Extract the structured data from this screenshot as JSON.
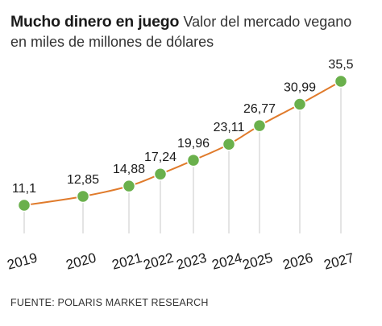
{
  "header": {
    "title": "Mucho dinero en juego",
    "subtitle_line1": "Valor del mercado vegano",
    "subtitle_line2": "en miles de millones de dólares"
  },
  "source": "FUENTE: POLARIS MARKET RESEARCH",
  "colors": {
    "line": "#e07b2c",
    "marker": "#6ab04c",
    "marker_stroke": "#ffffff",
    "drop_line": "#c8c8c8"
  },
  "chart_data": {
    "type": "line",
    "title": "Mucho dinero en juego",
    "subtitle": "Valor del mercado vegano en miles de millones de dólares",
    "x": [
      "2019",
      "2020",
      "2021",
      "2022",
      "2023",
      "2024",
      "2025",
      "2026",
      "2027"
    ],
    "series": [
      {
        "values": [
          11.1,
          12.85,
          14.88,
          17.24,
          19.96,
          23.11,
          26.77,
          30.99,
          35.5
        ],
        "labels": [
          "11,1",
          "12,85",
          "14,88",
          "17,24",
          "19,96",
          "23,11",
          "26,77",
          "30,99",
          "35,5"
        ]
      }
    ],
    "grid": false,
    "legend": "none"
  }
}
